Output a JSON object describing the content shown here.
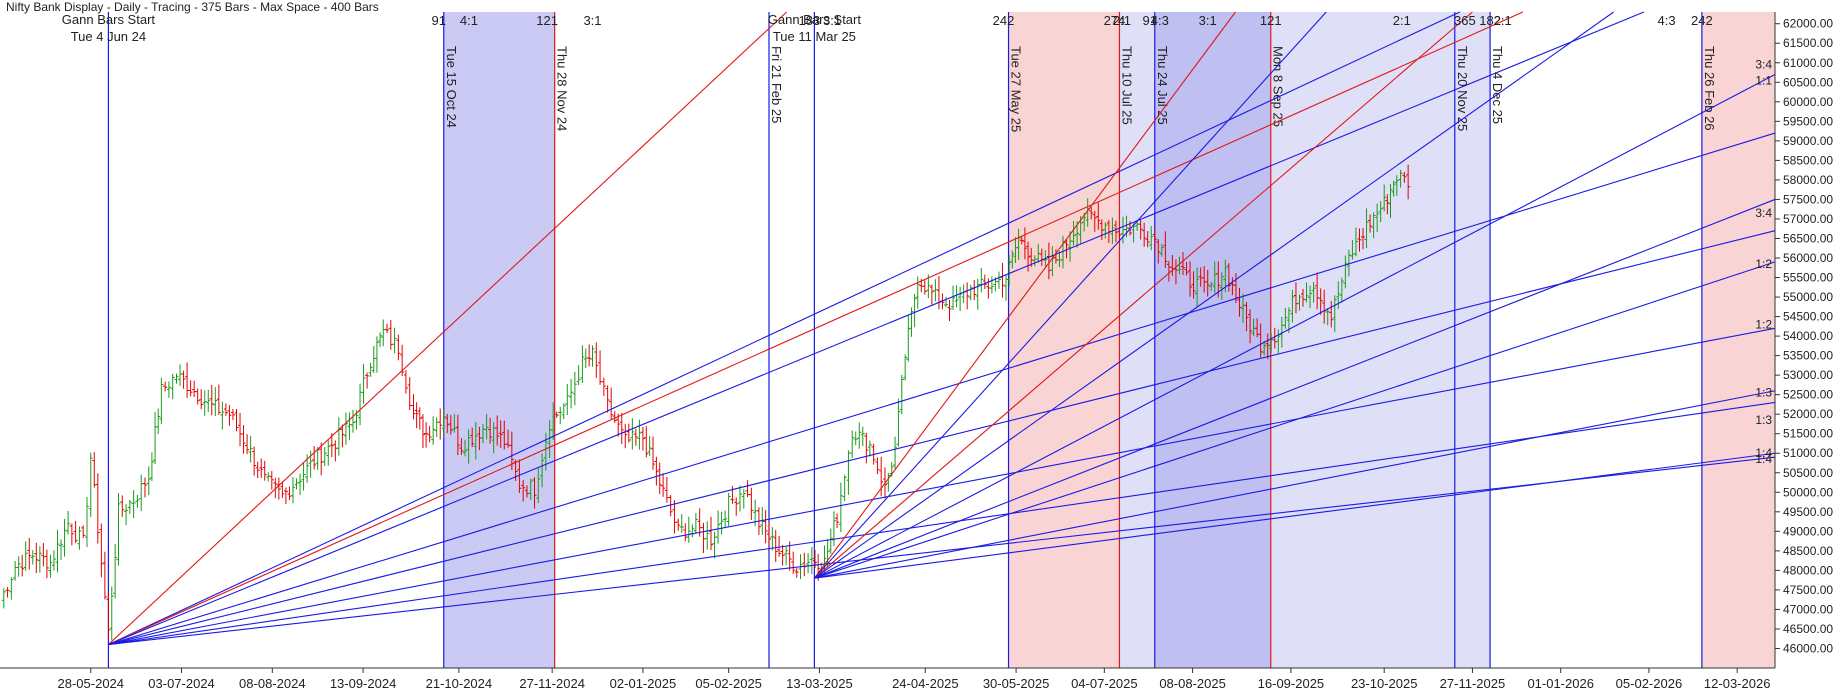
{
  "chart_data": {
    "type": "bar",
    "subtype": "ohlc-with-gann-overlays",
    "header_text": "Nifty Bank Display - Daily - Tracing - 375 Bars - Max Space - 400 Bars",
    "y_axis": {
      "ylim": [
        45500,
        62300
      ],
      "tick_step": 500,
      "tick_format": "0.00",
      "position": "right"
    },
    "x_axis": {
      "start": "2024-04-22",
      "end": "2026-03-27",
      "tick_labels": [
        "28-05-2024",
        "03-07-2024",
        "08-08-2024",
        "13-09-2024",
        "21-10-2024",
        "27-11-2024",
        "02-01-2025",
        "05-02-2025",
        "13-03-2025",
        "24-04-2025",
        "30-05-2025",
        "04-07-2025",
        "08-08-2025",
        "16-09-2025",
        "23-10-2025",
        "27-11-2025",
        "01-01-2026",
        "05-02-2026",
        "12-03-2026"
      ]
    },
    "grid": false,
    "colors": {
      "up": "#1a9a1a",
      "down": "#e00000",
      "blue_line": "#1a1ae6",
      "red_line": "#e01818",
      "blue_band": "#b8b8f0",
      "red_band": "#f7c6c6",
      "axis_text": "#222222"
    },
    "price_path": [
      [
        "2024-04-22",
        47200
      ],
      [
        "2024-04-28",
        48100
      ],
      [
        "2024-05-05",
        48400
      ],
      [
        "2024-05-12",
        48200
      ],
      [
        "2024-05-19",
        49200
      ],
      [
        "2024-05-25",
        48700
      ],
      [
        "2024-05-28",
        50900
      ],
      [
        "2024-06-04",
        46400
      ],
      [
        "2024-06-08",
        49500
      ],
      [
        "2024-06-14",
        49800
      ],
      [
        "2024-06-20",
        50400
      ],
      [
        "2024-06-25",
        52600
      ],
      [
        "2024-07-01",
        53000
      ],
      [
        "2024-07-08",
        52600
      ],
      [
        "2024-07-15",
        52200
      ],
      [
        "2024-07-22",
        52000
      ],
      [
        "2024-07-29",
        51200
      ],
      [
        "2024-08-05",
        50300
      ],
      [
        "2024-08-12",
        49900
      ],
      [
        "2024-08-19",
        50400
      ],
      [
        "2024-08-26",
        50900
      ],
      [
        "2024-09-02",
        51300
      ],
      [
        "2024-09-09",
        51800
      ],
      [
        "2024-09-16",
        53400
      ],
      [
        "2024-09-21",
        54100
      ],
      [
        "2024-09-27",
        53700
      ],
      [
        "2024-10-03",
        52000
      ],
      [
        "2024-10-08",
        51500
      ],
      [
        "2024-10-15",
        52000
      ],
      [
        "2024-10-22",
        51200
      ],
      [
        "2024-11-01",
        51700
      ],
      [
        "2024-11-08",
        51300
      ],
      [
        "2024-11-14",
        50200
      ],
      [
        "2024-11-20",
        50100
      ],
      [
        "2024-11-26",
        51800
      ],
      [
        "2024-12-03",
        52300
      ],
      [
        "2024-12-09",
        53300
      ],
      [
        "2024-12-13",
        53500
      ],
      [
        "2024-12-19",
        52200
      ],
      [
        "2024-12-26",
        51300
      ],
      [
        "2025-01-02",
        51400
      ],
      [
        "2025-01-10",
        50000
      ],
      [
        "2025-01-16",
        49000
      ],
      [
        "2025-01-23",
        49100
      ],
      [
        "2025-01-29",
        48800
      ],
      [
        "2025-02-05",
        49700
      ],
      [
        "2025-02-11",
        50100
      ],
      [
        "2025-02-17",
        49200
      ],
      [
        "2025-02-25",
        48500
      ],
      [
        "2025-03-04",
        48100
      ],
      [
        "2025-03-10",
        48300
      ],
      [
        "2025-03-15",
        48200
      ],
      [
        "2025-03-20",
        49400
      ],
      [
        "2025-03-26",
        51600
      ],
      [
        "2025-04-02",
        51200
      ],
      [
        "2025-04-08",
        50100
      ],
      [
        "2025-04-12",
        51100
      ],
      [
        "2025-04-16",
        53500
      ],
      [
        "2025-04-21",
        55500
      ],
      [
        "2025-04-28",
        55000
      ],
      [
        "2025-05-05",
        54800
      ],
      [
        "2025-05-12",
        55200
      ],
      [
        "2025-05-19",
        55300
      ],
      [
        "2025-05-26",
        55500
      ],
      [
        "2025-05-31",
        56500
      ],
      [
        "2025-06-05",
        56100
      ],
      [
        "2025-06-12",
        55700
      ],
      [
        "2025-06-19",
        56400
      ],
      [
        "2025-06-26",
        57100
      ],
      [
        "2025-07-03",
        56900
      ],
      [
        "2025-07-10",
        56700
      ],
      [
        "2025-07-17",
        56800
      ],
      [
        "2025-07-24",
        56500
      ],
      [
        "2025-07-31",
        55800
      ],
      [
        "2025-08-07",
        55400
      ],
      [
        "2025-08-14",
        55200
      ],
      [
        "2025-08-21",
        55700
      ],
      [
        "2025-08-28",
        54600
      ],
      [
        "2025-09-04",
        53800
      ],
      [
        "2025-09-11",
        54100
      ],
      [
        "2025-09-18",
        55000
      ],
      [
        "2025-09-25",
        55300
      ],
      [
        "2025-10-02",
        54500
      ],
      [
        "2025-10-09",
        56000
      ],
      [
        "2025-10-16",
        56800
      ],
      [
        "2025-10-23",
        57400
      ],
      [
        "2025-10-28",
        58100
      ],
      [
        "2025-11-03",
        57900
      ]
    ],
    "vertical_lines": [
      {
        "date": "2024-06-04",
        "color": "blue",
        "label": ""
      },
      {
        "date": "2024-10-15",
        "color": "blue",
        "label": "Tue 15 Oct 24"
      },
      {
        "date": "2024-11-28",
        "color": "red",
        "label": "Thu 28 Nov 24"
      },
      {
        "date": "2025-02-21",
        "color": "blue",
        "label": "Fri 21 Feb 25"
      },
      {
        "date": "2025-03-11",
        "color": "blue",
        "label": ""
      },
      {
        "date": "2025-05-27",
        "color": "blue",
        "label": "Tue 27 May 25"
      },
      {
        "date": "2025-07-10",
        "color": "red",
        "label": "Thu 10 Jul 25"
      },
      {
        "date": "2025-07-24",
        "color": "blue",
        "label": "Thu 24 Jul 25"
      },
      {
        "date": "2025-09-08",
        "color": "red",
        "label": "Mon 8 Sep 25"
      },
      {
        "date": "2025-11-20",
        "color": "blue",
        "label": "Thu 20 Nov 25"
      },
      {
        "date": "2025-12-04",
        "color": "blue",
        "label": "Thu 4 Dec 25"
      },
      {
        "date": "2026-02-26",
        "color": "blue",
        "label": "Thu 26 Feb 26"
      }
    ],
    "bands": [
      {
        "from": "2024-10-15",
        "to": "2024-11-28",
        "color": "blue",
        "opacity": 0.75
      },
      {
        "from": "2025-05-27",
        "to": "2025-07-10",
        "color": "red",
        "opacity": 0.75
      },
      {
        "from": "2025-07-10",
        "to": "2025-07-24",
        "color": "blue",
        "opacity": 0.45
      },
      {
        "from": "2025-07-24",
        "to": "2025-09-08",
        "color": "blue",
        "opacity": 0.9
      },
      {
        "from": "2025-09-08",
        "to": "2025-12-04",
        "color": "blue",
        "opacity": 0.45
      },
      {
        "from": "2026-02-26",
        "to": "2026-03-27",
        "color": "red",
        "opacity": 0.75
      }
    ],
    "gann_starts": [
      {
        "label_lines": [
          "Gann Bars Start",
          "Tue 4 Jun 24"
        ],
        "date": "2024-06-04",
        "price": 46100
      },
      {
        "label_lines": [
          "Gann Bars Start",
          "Tue 11 Mar 25"
        ],
        "date": "2025-03-11",
        "price": 47800
      }
    ],
    "fan_lines": [
      {
        "from": [
          0,
          "2024-06-04",
          46100
        ],
        "to": [
          "2025-02-28",
          62300
        ],
        "color": "red"
      },
      {
        "from": [
          0,
          "2024-06-04",
          46100
        ],
        "to": [
          "2025-11-22",
          62300
        ],
        "color": "blue"
      },
      {
        "from": [
          0,
          "2024-06-04",
          46100
        ],
        "to": [
          "2025-12-17",
          62300
        ],
        "color": "red"
      },
      {
        "from": [
          0,
          "2024-06-04",
          46100
        ],
        "to": [
          "2026-02-03",
          62300
        ],
        "color": "blue"
      },
      {
        "from": [
          0,
          "2024-06-04",
          46100
        ],
        "to": [
          "2026-03-27",
          59200
        ],
        "color": "blue"
      },
      {
        "from": [
          0,
          "2024-06-04",
          46100
        ],
        "to": [
          "2026-03-27",
          56700
        ],
        "color": "blue"
      },
      {
        "from": [
          0,
          "2024-06-04",
          46100
        ],
        "to": [
          "2026-03-27",
          54200
        ],
        "color": "blue"
      },
      {
        "from": [
          0,
          "2024-06-04",
          46100
        ],
        "to": [
          "2026-03-27",
          52300
        ],
        "color": "blue"
      },
      {
        "from": [
          0,
          "2024-06-04",
          46100
        ],
        "to": [
          "2026-03-27",
          50900
        ],
        "color": "blue"
      },
      {
        "from": [
          1,
          "2025-03-11",
          47800
        ],
        "to": [
          "2025-08-25",
          62300
        ],
        "color": "red"
      },
      {
        "from": [
          1,
          "2025-03-11",
          47800
        ],
        "to": [
          "2025-09-30",
          62300
        ],
        "color": "blue"
      },
      {
        "from": [
          1,
          "2025-03-11",
          47800
        ],
        "to": [
          "2025-11-27",
          62300
        ],
        "color": "red"
      },
      {
        "from": [
          1,
          "2025-03-11",
          47800
        ],
        "to": [
          "2026-01-22",
          62300
        ],
        "color": "blue"
      },
      {
        "from": [
          1,
          "2025-03-11",
          47800
        ],
        "to": [
          "2026-03-27",
          60700
        ],
        "color": "blue"
      },
      {
        "from": [
          1,
          "2025-03-11",
          47800
        ],
        "to": [
          "2026-03-27",
          57500
        ],
        "color": "blue"
      },
      {
        "from": [
          1,
          "2025-03-11",
          47800
        ],
        "to": [
          "2026-03-27",
          55900
        ],
        "color": "blue"
      },
      {
        "from": [
          1,
          "2025-03-11",
          47800
        ],
        "to": [
          "2026-03-27",
          52600
        ],
        "color": "blue"
      },
      {
        "from": [
          1,
          "2025-03-11",
          47800
        ],
        "to": [
          "2026-03-27",
          51000
        ],
        "color": "blue"
      }
    ],
    "top_labels": [
      {
        "date": "2024-10-13",
        "text": "91"
      },
      {
        "date": "2024-10-25",
        "text": "4:1"
      },
      {
        "date": "2024-11-25",
        "text": "121"
      },
      {
        "date": "2024-12-13",
        "text": "3:1"
      },
      {
        "date": "2025-03-09",
        "text": "183"
      },
      {
        "date": "2025-03-18",
        "text": "3:1"
      },
      {
        "date": "2025-05-25",
        "text": "242"
      },
      {
        "date": "2025-07-08",
        "text": "274"
      },
      {
        "date": "2025-07-11",
        "text": "2:1"
      },
      {
        "date": "2025-07-22",
        "text": "91"
      },
      {
        "date": "2025-07-26",
        "text": "4:3"
      },
      {
        "date": "2025-08-14",
        "text": "3:1"
      },
      {
        "date": "2025-09-08",
        "text": "121"
      },
      {
        "date": "2025-10-30",
        "text": "2:1"
      },
      {
        "date": "2025-11-24",
        "text": "365"
      },
      {
        "date": "2025-12-04",
        "text": "182"
      },
      {
        "date": "2025-12-09",
        "text": "2:1"
      },
      {
        "date": "2026-02-12",
        "text": "4:3"
      },
      {
        "date": "2026-02-26",
        "text": "242"
      }
    ],
    "right_ratio_labels": [
      {
        "price": 60950,
        "text": "3:4"
      },
      {
        "price": 60550,
        "text": "1:1"
      },
      {
        "price": 57150,
        "text": "3:4"
      },
      {
        "price": 55850,
        "text": "1:2"
      },
      {
        "price": 54300,
        "text": "1:2"
      },
      {
        "price": 52550,
        "text": "1:3"
      },
      {
        "price": 51850,
        "text": "1:3"
      },
      {
        "price": 51000,
        "text": "1:4"
      },
      {
        "price": 50850,
        "text": "1:4"
      }
    ]
  }
}
